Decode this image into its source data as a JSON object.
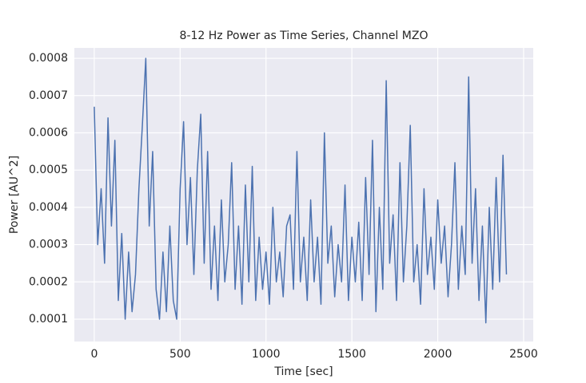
{
  "chart_data": {
    "type": "line",
    "title": "8-12 Hz Power as Time Series, Channel MZO",
    "xlabel": "Time [sec]",
    "ylabel": "Power [AU^2]",
    "x": [
      0,
      20,
      40,
      60,
      80,
      100,
      120,
      140,
      160,
      180,
      200,
      220,
      240,
      260,
      280,
      300,
      320,
      340,
      360,
      380,
      400,
      420,
      440,
      460,
      480,
      500,
      520,
      540,
      560,
      580,
      600,
      620,
      640,
      660,
      680,
      700,
      720,
      740,
      760,
      780,
      800,
      820,
      840,
      860,
      880,
      900,
      920,
      940,
      960,
      980,
      1000,
      1020,
      1040,
      1060,
      1080,
      1100,
      1120,
      1140,
      1160,
      1180,
      1200,
      1220,
      1240,
      1260,
      1280,
      1300,
      1320,
      1340,
      1360,
      1380,
      1400,
      1420,
      1440,
      1460,
      1480,
      1500,
      1520,
      1540,
      1560,
      1580,
      1600,
      1620,
      1640,
      1660,
      1680,
      1700,
      1720,
      1740,
      1760,
      1780,
      1800,
      1820,
      1840,
      1860,
      1880,
      1900,
      1920,
      1940,
      1960,
      1980,
      2000,
      2020,
      2040,
      2060,
      2080,
      2100,
      2120,
      2140,
      2160,
      2180,
      2200,
      2220,
      2240,
      2260,
      2280,
      2300,
      2320,
      2340,
      2360,
      2380,
      2400
    ],
    "series": [
      {
        "color": "#4c72b0",
        "values": [
          0.00067,
          0.0003,
          0.00045,
          0.00025,
          0.00064,
          0.00035,
          0.00058,
          0.00015,
          0.00033,
          0.0001,
          0.00028,
          0.00012,
          0.00022,
          0.00045,
          0.00062,
          0.0008,
          0.00035,
          0.00055,
          0.00018,
          0.0001,
          0.00028,
          0.00012,
          0.00035,
          0.00015,
          0.0001,
          0.00045,
          0.00063,
          0.0003,
          0.00048,
          0.00022,
          0.0005,
          0.00065,
          0.00025,
          0.00055,
          0.00018,
          0.00035,
          0.00015,
          0.00042,
          0.0002,
          0.0003,
          0.00052,
          0.00018,
          0.00035,
          0.00014,
          0.00046,
          0.0002,
          0.00051,
          0.00015,
          0.00032,
          0.00018,
          0.00028,
          0.00014,
          0.0004,
          0.0002,
          0.00028,
          0.00016,
          0.00035,
          0.00038,
          0.00018,
          0.00055,
          0.0002,
          0.00032,
          0.00015,
          0.00042,
          0.0002,
          0.00032,
          0.00014,
          0.0006,
          0.00025,
          0.00035,
          0.00016,
          0.0003,
          0.0002,
          0.00046,
          0.00015,
          0.00032,
          0.0002,
          0.00036,
          0.00015,
          0.00048,
          0.00022,
          0.00058,
          0.00012,
          0.0004,
          0.00018,
          0.00074,
          0.00025,
          0.00038,
          0.00015,
          0.00052,
          0.0002,
          0.00035,
          0.00062,
          0.0002,
          0.0003,
          0.00014,
          0.00045,
          0.00022,
          0.00032,
          0.00018,
          0.00042,
          0.00025,
          0.00035,
          0.00016,
          0.0003,
          0.00052,
          0.00018,
          0.00035,
          0.00022,
          0.00075,
          0.00025,
          0.00045,
          0.00015,
          0.00035,
          9e-05,
          0.0004,
          0.00018,
          0.00048,
          0.0002,
          0.00054,
          0.00022
        ]
      }
    ],
    "xlim": [
      -116,
      2556
    ],
    "ylim": [
      4e-05,
      0.000828
    ],
    "xticks": [
      0,
      500,
      1000,
      1500,
      2000,
      2500
    ],
    "yticks": [
      0.0001,
      0.0002,
      0.0003,
      0.0004,
      0.0005,
      0.0006,
      0.0007,
      0.0008
    ],
    "grid": true
  }
}
